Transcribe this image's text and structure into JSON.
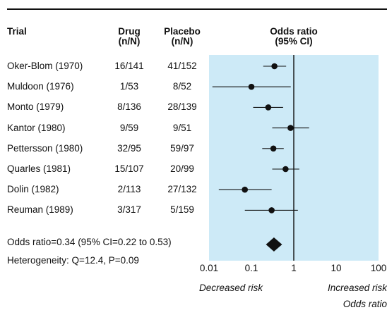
{
  "chart_data": {
    "type": "forest",
    "columns": {
      "trial": "Trial",
      "drug": [
        "Drug",
        "(n/N)"
      ],
      "placebo": [
        "Placebo",
        "(n/N)"
      ],
      "odds_ratio": [
        "Odds ratio",
        "(95% CI)"
      ]
    },
    "rows": [
      {
        "trial": "Oker-Blom (1970)",
        "drug": "16/141",
        "placebo": "41/152",
        "or": 0.35,
        "lo": 0.19,
        "hi": 0.66
      },
      {
        "trial": "Muldoon (1976)",
        "drug": "1/53",
        "placebo": "8/52",
        "or": 0.1,
        "lo": 0.012,
        "hi": 0.85
      },
      {
        "trial": "Monto (1979)",
        "drug": "8/136",
        "placebo": "28/139",
        "or": 0.25,
        "lo": 0.11,
        "hi": 0.56
      },
      {
        "trial": "Kantor (1980)",
        "drug": "9/59",
        "placebo": "9/51",
        "or": 0.84,
        "lo": 0.31,
        "hi": 2.3
      },
      {
        "trial": "Pettersson (1980)",
        "drug": "32/95",
        "placebo": "59/97",
        "or": 0.33,
        "lo": 0.18,
        "hi": 0.58
      },
      {
        "trial": "Quarles (1981)",
        "drug": "15/107",
        "placebo": "20/99",
        "or": 0.64,
        "lo": 0.31,
        "hi": 1.35
      },
      {
        "trial": "Dolin (1982)",
        "drug": "2/113",
        "placebo": "27/132",
        "or": 0.07,
        "lo": 0.017,
        "hi": 0.3
      },
      {
        "trial": "Reuman (1989)",
        "drug": "3/317",
        "placebo": "5/159",
        "or": 0.3,
        "lo": 0.07,
        "hi": 1.25
      }
    ],
    "pooled": {
      "or": 0.34,
      "lo": 0.22,
      "hi": 0.53
    },
    "summary_text": "Odds ratio=0.34 (95% CI=0.22 to 0.53)",
    "heterogeneity_text": "Heterogeneity: Q=12.4, P=0.09",
    "x_scale": "log",
    "x_range": [
      0.01,
      100
    ],
    "x_ticks": [
      0.01,
      0.1,
      1,
      10,
      100
    ],
    "x_tick_labels": [
      "0.01",
      "0.1",
      "1",
      "10",
      "100"
    ],
    "reference_line": 1,
    "left_direction_label": "Decreased risk",
    "right_direction_label": "Increased risk",
    "xlabel": "Odds ratio",
    "colors": {
      "panel": "#cdeaf7",
      "marker": "#111111",
      "line": "#111111"
    }
  }
}
